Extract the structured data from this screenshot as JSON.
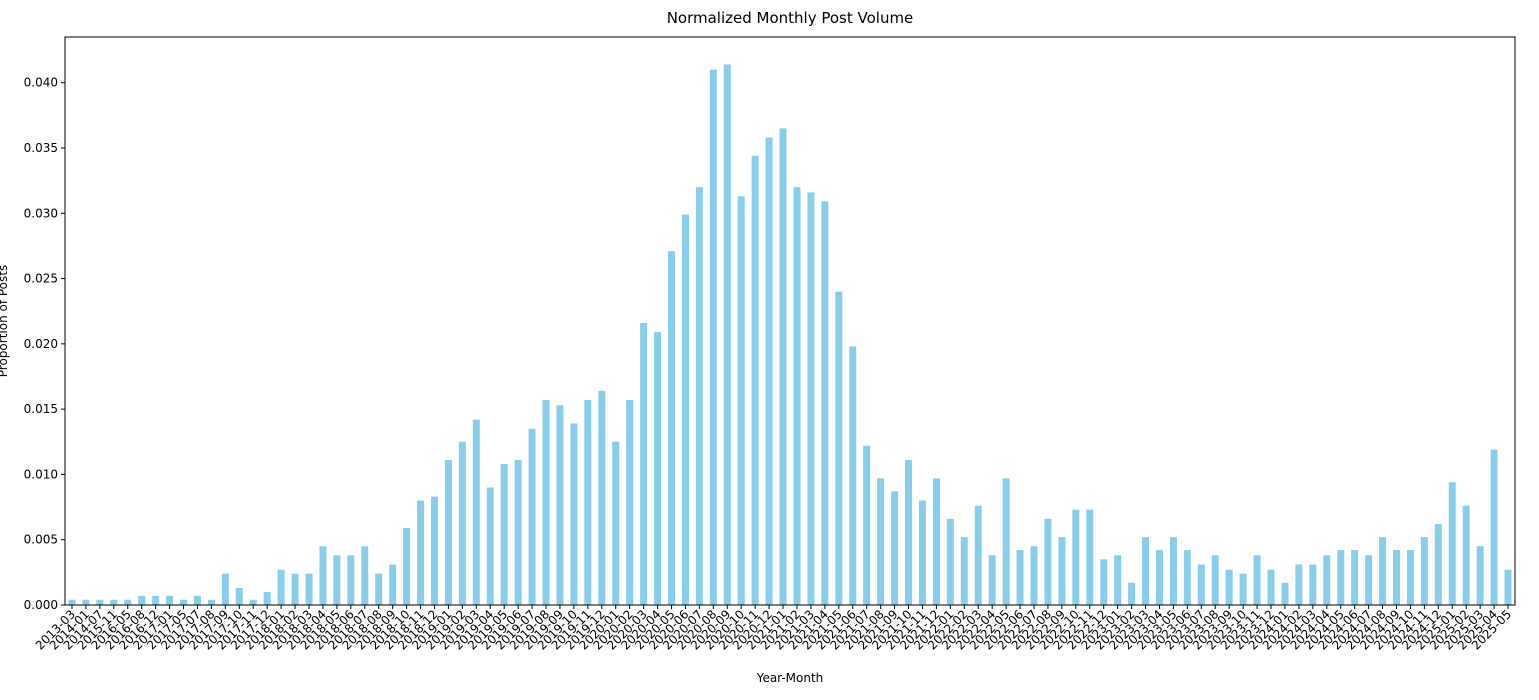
{
  "chart_data": {
    "type": "bar",
    "title": "Normalized Monthly Post Volume",
    "x_label": "Year-Month",
    "y_label": "Proportion of Posts",
    "categories": [
      "2013-03",
      "2014-01",
      "2014-07",
      "2015-11",
      "2016-05",
      "2016-08",
      "2016-12",
      "2017-01",
      "2017-05",
      "2017-07",
      "2017-08",
      "2017-09",
      "2017-10",
      "2017-11",
      "2017-12",
      "2018-01",
      "2018-02",
      "2018-03",
      "2018-04",
      "2018-05",
      "2018-06",
      "2018-07",
      "2018-08",
      "2018-09",
      "2018-10",
      "2018-11",
      "2018-12",
      "2019-01",
      "2019-02",
      "2019-03",
      "2019-04",
      "2019-05",
      "2019-06",
      "2019-07",
      "2019-08",
      "2019-09",
      "2019-10",
      "2019-11",
      "2019-12",
      "2020-01",
      "2020-02",
      "2020-03",
      "2020-04",
      "2020-05",
      "2020-06",
      "2020-07",
      "2020-08",
      "2020-09",
      "2020-10",
      "2020-11",
      "2020-12",
      "2021-01",
      "2021-02",
      "2021-03",
      "2021-04",
      "2021-05",
      "2021-06",
      "2021-07",
      "2021-08",
      "2021-09",
      "2021-10",
      "2021-11",
      "2021-12",
      "2022-01",
      "2022-02",
      "2022-03",
      "2022-04",
      "2022-05",
      "2022-06",
      "2022-07",
      "2022-08",
      "2022-09",
      "2022-10",
      "2022-11",
      "2022-12",
      "2023-01",
      "2023-02",
      "2023-03",
      "2023-04",
      "2023-05",
      "2023-06",
      "2023-07",
      "2023-08",
      "2023-09",
      "2023-10",
      "2023-11",
      "2023-12",
      "2024-01",
      "2024-02",
      "2024-03",
      "2024-04",
      "2024-05",
      "2024-06",
      "2024-07",
      "2024-08",
      "2024-09",
      "2024-10",
      "2024-11",
      "2024-12",
      "2025-01",
      "2025-02",
      "2025-03",
      "2025-04",
      "2025-05"
    ],
    "values": [
      0.0004,
      0.0004,
      0.0004,
      0.0004,
      0.0004,
      0.0007,
      0.0007,
      0.0007,
      0.0004,
      0.0007,
      0.0004,
      0.0024,
      0.0013,
      0.0004,
      0.001,
      0.0027,
      0.0024,
      0.0024,
      0.0045,
      0.0038,
      0.0038,
      0.0045,
      0.0024,
      0.0031,
      0.0059,
      0.008,
      0.0083,
      0.0111,
      0.0125,
      0.0142,
      0.009,
      0.0108,
      0.0111,
      0.0135,
      0.0157,
      0.0153,
      0.0139,
      0.0157,
      0.0164,
      0.0125,
      0.0157,
      0.0216,
      0.0209,
      0.0271,
      0.0299,
      0.032,
      0.041,
      0.0414,
      0.0313,
      0.0344,
      0.0358,
      0.0365,
      0.032,
      0.0316,
      0.0309,
      0.024,
      0.0198,
      0.0122,
      0.0097,
      0.0087,
      0.0111,
      0.008,
      0.0097,
      0.0066,
      0.0052,
      0.0076,
      0.0038,
      0.0097,
      0.0042,
      0.0045,
      0.0066,
      0.0052,
      0.0073,
      0.0073,
      0.0035,
      0.0038,
      0.0017,
      0.0052,
      0.0042,
      0.0052,
      0.0042,
      0.0031,
      0.0038,
      0.0027,
      0.0024,
      0.0038,
      0.0027,
      0.0017,
      0.0031,
      0.0031,
      0.0038,
      0.0042,
      0.0042,
      0.0038,
      0.0052,
      0.0042,
      0.0042,
      0.0052,
      0.0062,
      0.0094,
      0.0076,
      0.0045,
      0.0119,
      0.0027
    ],
    "color": "#87ceeb",
    "ylim": [
      0,
      0.0435
    ],
    "yticks": [
      {
        "value": 0,
        "label": "0.000"
      },
      {
        "value": 0.005,
        "label": "0.005"
      },
      {
        "value": 0.01,
        "label": "0.010"
      },
      {
        "value": 0.015,
        "label": "0.015"
      },
      {
        "value": 0.02,
        "label": "0.020"
      },
      {
        "value": 0.025,
        "label": "0.025"
      },
      {
        "value": 0.03,
        "label": "0.030"
      },
      {
        "value": 0.035,
        "label": "0.035"
      },
      {
        "value": 0.04,
        "label": "0.040"
      }
    ],
    "grid": false
  }
}
